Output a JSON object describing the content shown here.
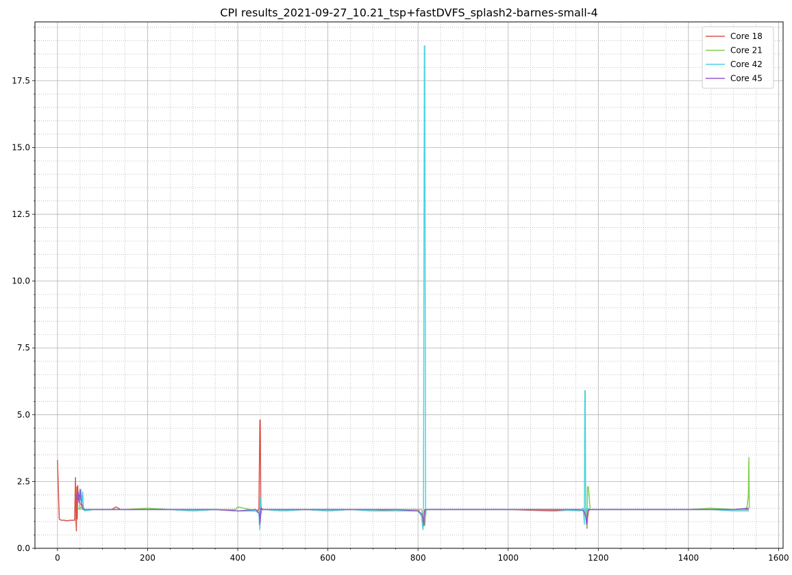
{
  "chart_data": {
    "type": "line",
    "title": "CPI results_2021-09-27_10.21_tsp+fastDVFS_splash2-barnes-small-4",
    "xlabel": "",
    "ylabel": "",
    "xlim": [
      -50,
      1610
    ],
    "ylim": [
      0,
      19.7
    ],
    "x_ticks": [
      0,
      200,
      400,
      600,
      800,
      1000,
      1200,
      1400,
      1600
    ],
    "x_tick_labels": [
      "0",
      "200",
      "400",
      "600",
      "800",
      "1000",
      "1200",
      "1400",
      "1600"
    ],
    "y_ticks": [
      0,
      2.5,
      5,
      7.5,
      10,
      12.5,
      15,
      17.5
    ],
    "y_tick_labels": [
      "0.0",
      "2.5",
      "5.0",
      "7.5",
      "10.0",
      "12.5",
      "15.0",
      "17.5"
    ],
    "x_minor_step": 50,
    "y_minor_step": 0.5,
    "grid": "major solid, minor dotted",
    "legend_position": "top-right",
    "series": [
      {
        "name": "Core 18",
        "color": "#d9534a",
        "x": [
          0,
          4,
          8,
          15,
          20,
          30,
          38,
          40,
          41,
          42,
          43,
          44,
          45,
          46,
          48,
          50,
          55,
          60,
          80,
          100,
          120,
          130,
          140,
          160,
          200,
          250,
          300,
          350,
          400,
          440,
          447,
          449,
          450,
          451,
          452,
          453,
          455,
          460,
          500,
          550,
          600,
          650,
          700,
          750,
          800,
          808,
          812,
          815,
          818,
          822,
          830,
          900,
          1000,
          1100,
          1160,
          1168,
          1172,
          1174,
          1175,
          1176,
          1178,
          1182,
          1190,
          1250,
          1300,
          1350,
          1400,
          1450,
          1500,
          1534
        ],
        "y": [
          3.3,
          1.1,
          1.05,
          1.05,
          1.03,
          1.05,
          1.05,
          2.65,
          1.0,
          0.65,
          2.3,
          1.1,
          2.35,
          1.8,
          2.0,
          1.7,
          1.55,
          1.45,
          1.45,
          1.45,
          1.45,
          1.55,
          1.45,
          1.45,
          1.45,
          1.45,
          1.4,
          1.45,
          1.4,
          1.4,
          1.45,
          4.8,
          4.8,
          1.9,
          1.3,
          1.5,
          1.45,
          1.45,
          1.4,
          1.45,
          1.4,
          1.45,
          1.4,
          1.45,
          1.45,
          1.2,
          0.9,
          1.45,
          1.45,
          1.45,
          1.45,
          1.45,
          1.45,
          1.4,
          1.45,
          1.4,
          1.3,
          1.0,
          0.75,
          1.1,
          1.4,
          1.45,
          1.45,
          1.45,
          1.45,
          1.45,
          1.45,
          1.45,
          1.45,
          1.45
        ]
      },
      {
        "name": "Core 21",
        "color": "#7bd14a",
        "x": [
          45,
          50,
          52,
          55,
          58,
          60,
          80,
          100,
          150,
          200,
          250,
          300,
          350,
          395,
          400,
          440,
          448,
          450,
          452,
          455,
          460,
          500,
          550,
          600,
          650,
          700,
          750,
          800,
          808,
          812,
          815,
          818,
          822,
          830,
          900,
          1000,
          1100,
          1160,
          1168,
          1172,
          1175,
          1176,
          1178,
          1182,
          1190,
          1250,
          1300,
          1350,
          1400,
          1450,
          1500,
          1525,
          1530,
          1533,
          1534,
          1535
        ],
        "y": [
          1.5,
          1.45,
          1.55,
          1.45,
          1.5,
          1.45,
          1.45,
          1.45,
          1.45,
          1.5,
          1.45,
          1.45,
          1.45,
          1.45,
          1.55,
          1.4,
          1.4,
          1.1,
          1.45,
          1.45,
          1.45,
          1.45,
          1.45,
          1.45,
          1.45,
          1.45,
          1.45,
          1.45,
          1.45,
          1.2,
          0.85,
          1.45,
          1.45,
          1.45,
          1.45,
          1.45,
          1.45,
          1.45,
          1.45,
          1.45,
          0.8,
          2.3,
          2.3,
          1.45,
          1.45,
          1.45,
          1.45,
          1.45,
          1.45,
          1.5,
          1.45,
          1.45,
          1.55,
          2.0,
          3.4,
          1.5
        ]
      },
      {
        "name": "Core 42",
        "color": "#4dd3e0",
        "x": [
          48,
          50,
          52,
          54,
          56,
          58,
          60,
          80,
          100,
          150,
          200,
          250,
          300,
          350,
          400,
          440,
          447,
          448,
          449,
          450,
          451,
          452,
          455,
          460,
          500,
          550,
          600,
          650,
          700,
          750,
          800,
          808,
          810,
          811,
          812,
          813,
          814,
          815,
          816,
          817,
          818,
          820,
          830,
          900,
          1000,
          1100,
          1160,
          1166,
          1168,
          1169,
          1170,
          1171,
          1172,
          1174,
          1176,
          1180,
          1190,
          1250,
          1300,
          1350,
          1400,
          1450,
          1500,
          1534
        ],
        "y": [
          1.45,
          1.8,
          2.2,
          1.7,
          2.1,
          1.5,
          1.4,
          1.45,
          1.45,
          1.45,
          1.45,
          1.45,
          1.4,
          1.45,
          1.4,
          1.4,
          1.3,
          0.9,
          0.7,
          1.9,
          1.2,
          1.45,
          1.45,
          1.45,
          1.4,
          1.45,
          1.4,
          1.45,
          1.4,
          1.4,
          1.4,
          1.2,
          0.8,
          0.7,
          1.0,
          10.0,
          18.8,
          18.8,
          8.0,
          1.3,
          1.45,
          1.45,
          1.45,
          1.45,
          1.45,
          1.45,
          1.4,
          1.5,
          1.2,
          0.9,
          5.9,
          5.9,
          1.3,
          1.45,
          1.5,
          1.45,
          1.45,
          1.45,
          1.45,
          1.45,
          1.45,
          1.45,
          1.4,
          1.4
        ]
      },
      {
        "name": "Core 45",
        "color": "#9455d0",
        "x": [
          42,
          44,
          46,
          48,
          50,
          52,
          54,
          56,
          58,
          60,
          80,
          100,
          150,
          200,
          250,
          300,
          350,
          400,
          440,
          448,
          449,
          450,
          451,
          452,
          455,
          460,
          500,
          550,
          600,
          650,
          700,
          750,
          800,
          808,
          812,
          813,
          814,
          816,
          818,
          822,
          830,
          900,
          1000,
          1100,
          1160,
          1168,
          1172,
          1174,
          1176,
          1178,
          1182,
          1190,
          1250,
          1300,
          1350,
          1400,
          1450,
          1500,
          1534
        ],
        "y": [
          2.0,
          1.85,
          2.1,
          1.7,
          2.2,
          1.85,
          1.7,
          1.5,
          1.45,
          1.45,
          1.45,
          1.45,
          1.45,
          1.45,
          1.45,
          1.45,
          1.45,
          1.4,
          1.45,
          1.3,
          0.9,
          1.0,
          1.5,
          1.45,
          1.45,
          1.45,
          1.45,
          1.45,
          1.45,
          1.45,
          1.45,
          1.45,
          1.4,
          1.3,
          1.1,
          0.85,
          1.2,
          1.45,
          1.45,
          1.45,
          1.45,
          1.45,
          1.45,
          1.45,
          1.45,
          1.4,
          1.2,
          0.9,
          1.3,
          1.45,
          1.45,
          1.45,
          1.45,
          1.45,
          1.45,
          1.45,
          1.45,
          1.45,
          1.5
        ]
      }
    ]
  }
}
